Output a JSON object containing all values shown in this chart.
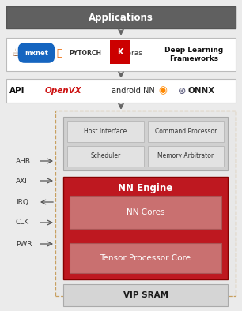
{
  "background_color": "#ebebeb",
  "apps_box": {
    "label": "Applications",
    "facecolor": "#606060",
    "textcolor": "#ffffff",
    "fontsize": 8.5,
    "bold": true
  },
  "frameworks_label": "Deep Learning\nFrameworks",
  "frameworks_fontsize": 6.5,
  "api_label": "API",
  "api_fontsize": 7.5,
  "dashed_edgecolor": "#c8a060",
  "dashed_facecolor": "#e8e8e8",
  "ctrl_facecolor": "#d0d0d0",
  "ctrl_cell_facecolor": "#e2e2e2",
  "ctrl_cells": [
    "Host Interface",
    "Command Processor",
    "Scheduler",
    "Memory Arbitrator"
  ],
  "ctrl_cell_fontsize": 5.5,
  "nn_engine_label": "NN Engine",
  "nn_engine_facecolor": "#be1820",
  "nn_engine_textcolor": "#ffffff",
  "nn_engine_fontsize": 8.5,
  "nn_cores_label": "NN Cores",
  "nn_cores_facecolor": "#c97070",
  "nn_cores_textcolor": "#ffffff",
  "nn_cores_fontsize": 7.5,
  "tensor_label": "Tensor Processor Core",
  "tensor_facecolor": "#c97070",
  "tensor_textcolor": "#ffffff",
  "tensor_fontsize": 7.5,
  "vip_label": "VIP SRAM",
  "vip_facecolor": "#d5d5d5",
  "vip_textcolor": "#1a1a1a",
  "vip_fontsize": 7.5,
  "signals": [
    "AHB",
    "AXI",
    "IRQ",
    "CLK",
    "PWR"
  ],
  "signal_directions": [
    "both_right",
    "both_right",
    "left",
    "right",
    "right"
  ],
  "signal_fontsize": 6.5,
  "arrow_color": "#555555"
}
